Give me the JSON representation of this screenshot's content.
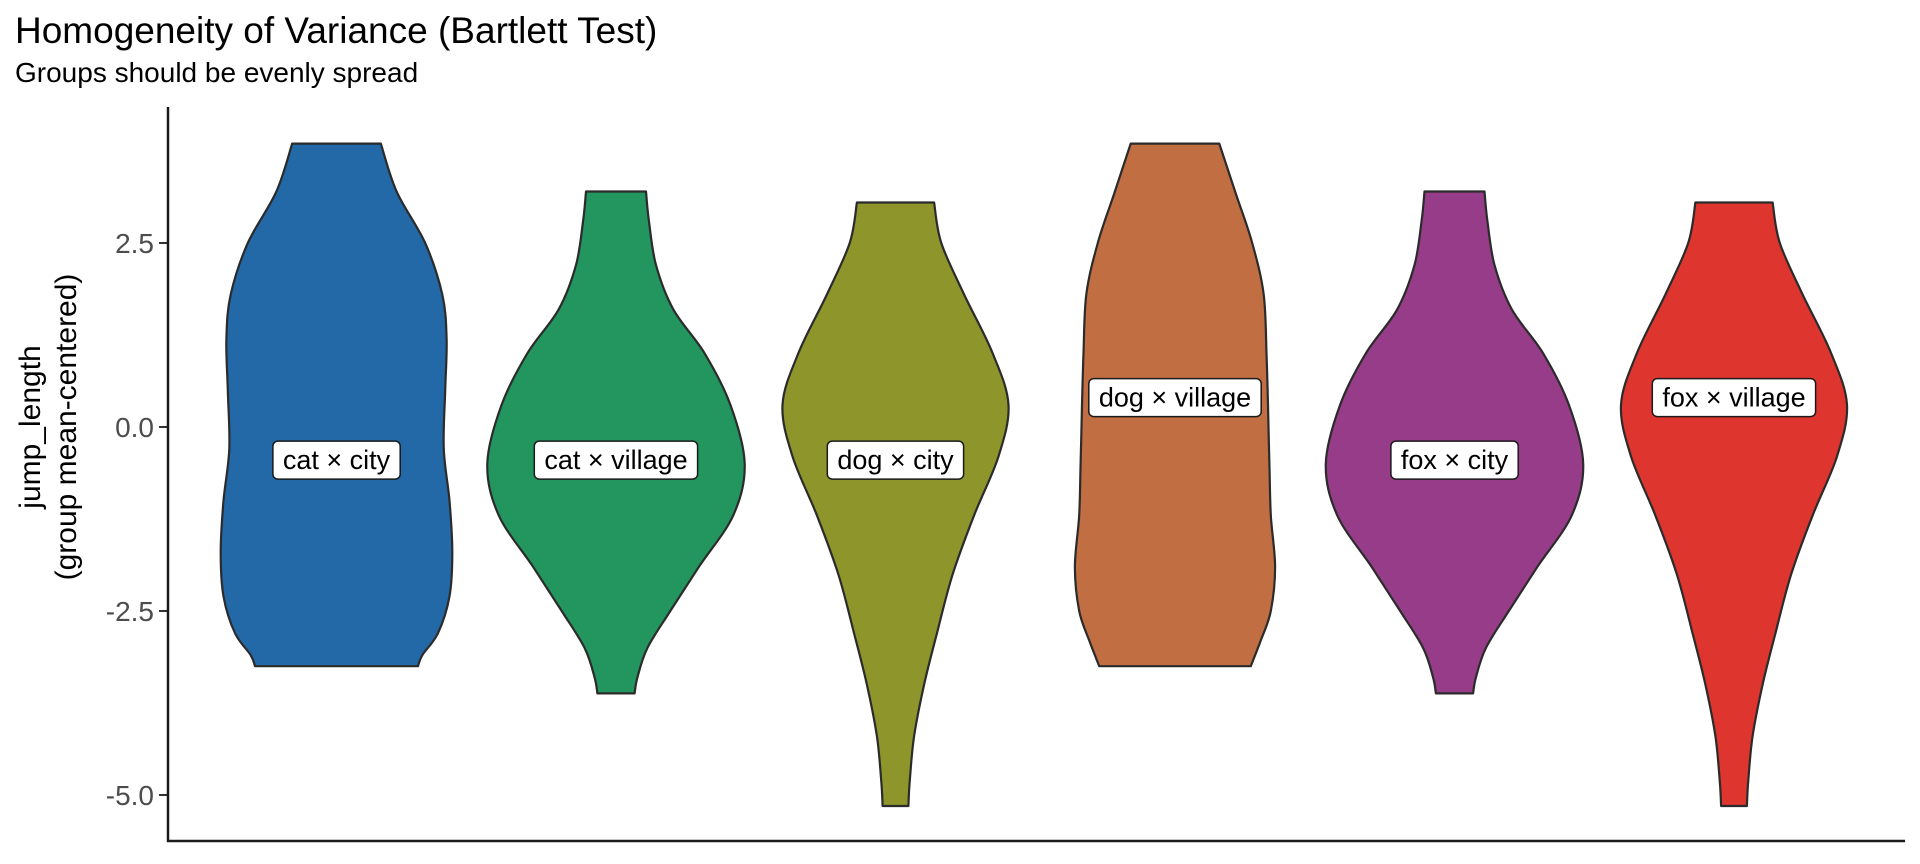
{
  "chart_data": {
    "type": "violin",
    "title": "Homogeneity of Variance (Bartlett Test)",
    "subtitle": "Groups should be evenly spread",
    "xlabel": "",
    "ylabel": "jump_length\n(group mean-centered)",
    "ylim": [
      -5.6,
      4.3
    ],
    "y_ticks": [
      {
        "value": 2.5,
        "label": "2.5"
      },
      {
        "value": 0.0,
        "label": "0.0"
      },
      {
        "value": -2.5,
        "label": "-2.5"
      },
      {
        "value": -5.0,
        "label": "-5.0"
      }
    ],
    "grid": false,
    "legend": "none",
    "outline_color": "#2b2b2b",
    "groups": [
      {
        "label": "cat × city",
        "color": "#2369A8",
        "label_y": -0.45,
        "density": [
          [
            3.85,
            0.31
          ],
          [
            3.2,
            0.42
          ],
          [
            2.5,
            0.62
          ],
          [
            1.8,
            0.74
          ],
          [
            1.2,
            0.77
          ],
          [
            0.5,
            0.76
          ],
          [
            -0.3,
            0.75
          ],
          [
            -1.0,
            0.79
          ],
          [
            -1.7,
            0.81
          ],
          [
            -2.3,
            0.79
          ],
          [
            -2.8,
            0.71
          ],
          [
            -3.1,
            0.6
          ],
          [
            -3.25,
            0.57
          ]
        ]
      },
      {
        "label": "cat × village",
        "color": "#23955E",
        "label_y": -0.45,
        "density": [
          [
            3.2,
            0.21
          ],
          [
            2.8,
            0.23
          ],
          [
            2.2,
            0.28
          ],
          [
            1.6,
            0.4
          ],
          [
            1.0,
            0.62
          ],
          [
            0.3,
            0.8
          ],
          [
            -0.5,
            0.9
          ],
          [
            -1.2,
            0.82
          ],
          [
            -1.9,
            0.58
          ],
          [
            -2.5,
            0.38
          ],
          [
            -3.0,
            0.22
          ],
          [
            -3.4,
            0.15
          ],
          [
            -3.62,
            0.13
          ]
        ]
      },
      {
        "label": "dog × city",
        "color": "#8E962B",
        "label_y": -0.45,
        "density": [
          [
            3.05,
            0.27
          ],
          [
            2.5,
            0.32
          ],
          [
            1.8,
            0.48
          ],
          [
            1.0,
            0.68
          ],
          [
            0.3,
            0.79
          ],
          [
            -0.4,
            0.72
          ],
          [
            -1.2,
            0.55
          ],
          [
            -2.0,
            0.4
          ],
          [
            -2.8,
            0.29
          ],
          [
            -3.5,
            0.2
          ],
          [
            -4.2,
            0.13
          ],
          [
            -4.8,
            0.1
          ],
          [
            -5.15,
            0.09
          ]
        ]
      },
      {
        "label": "dog × village",
        "color": "#C26E43",
        "label_y": 0.4,
        "density": [
          [
            3.85,
            0.31
          ],
          [
            3.2,
            0.42
          ],
          [
            2.5,
            0.54
          ],
          [
            1.8,
            0.62
          ],
          [
            1.0,
            0.64
          ],
          [
            0.3,
            0.65
          ],
          [
            -0.5,
            0.66
          ],
          [
            -1.2,
            0.67
          ],
          [
            -1.9,
            0.7
          ],
          [
            -2.5,
            0.67
          ],
          [
            -2.9,
            0.6
          ],
          [
            -3.15,
            0.55
          ],
          [
            -3.25,
            0.53
          ]
        ]
      },
      {
        "label": "fox × city",
        "color": "#963C88",
        "label_y": -0.45,
        "density": [
          [
            3.2,
            0.21
          ],
          [
            2.8,
            0.23
          ],
          [
            2.2,
            0.28
          ],
          [
            1.6,
            0.4
          ],
          [
            1.0,
            0.62
          ],
          [
            0.3,
            0.8
          ],
          [
            -0.5,
            0.9
          ],
          [
            -1.2,
            0.82
          ],
          [
            -1.9,
            0.58
          ],
          [
            -2.5,
            0.38
          ],
          [
            -3.0,
            0.22
          ],
          [
            -3.4,
            0.15
          ],
          [
            -3.62,
            0.13
          ]
        ]
      },
      {
        "label": "fox × village",
        "color": "#DE352F",
        "label_y": 0.4,
        "density": [
          [
            3.05,
            0.27
          ],
          [
            2.5,
            0.32
          ],
          [
            1.8,
            0.48
          ],
          [
            1.0,
            0.68
          ],
          [
            0.3,
            0.79
          ],
          [
            -0.4,
            0.72
          ],
          [
            -1.2,
            0.55
          ],
          [
            -2.0,
            0.4
          ],
          [
            -2.8,
            0.29
          ],
          [
            -3.5,
            0.2
          ],
          [
            -4.2,
            0.13
          ],
          [
            -4.8,
            0.1
          ],
          [
            -5.15,
            0.09
          ]
        ]
      }
    ]
  }
}
